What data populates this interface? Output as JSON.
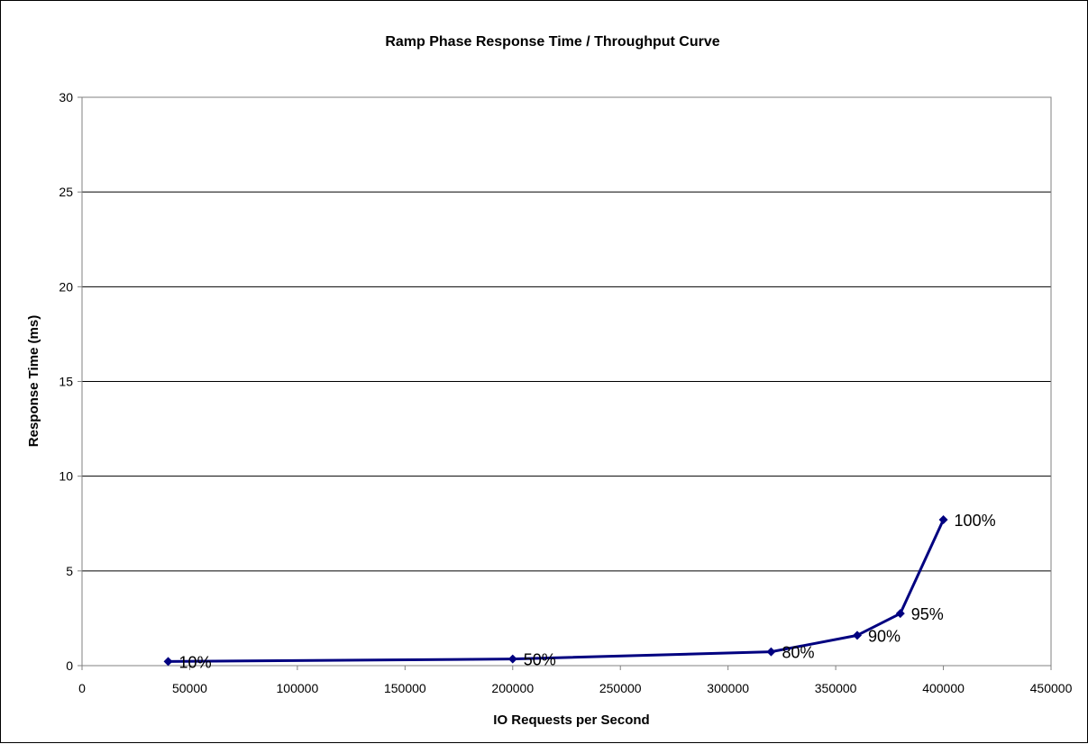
{
  "chart_data": {
    "type": "line",
    "title": "Ramp Phase Response Time / Throughput Curve",
    "xlabel": "IO Requests per Second",
    "ylabel": "Response Time (ms)",
    "xlim": [
      0,
      450000
    ],
    "ylim": [
      0,
      30
    ],
    "xticks": [
      0,
      50000,
      100000,
      150000,
      200000,
      250000,
      300000,
      350000,
      400000,
      450000
    ],
    "yticks": [
      0,
      5,
      10,
      15,
      20,
      25,
      30
    ],
    "grid": "horizontal",
    "legend": "none",
    "series": [
      {
        "color": "#000080",
        "points": [
          {
            "x": 40000,
            "y": 0.22,
            "label": "10%"
          },
          {
            "x": 200000,
            "y": 0.35,
            "label": "50%"
          },
          {
            "x": 320000,
            "y": 0.73,
            "label": "80%"
          },
          {
            "x": 360000,
            "y": 1.6,
            "label": "90%"
          },
          {
            "x": 380000,
            "y": 2.75,
            "label": "95%"
          },
          {
            "x": 400000,
            "y": 7.7,
            "label": "100%"
          }
        ]
      }
    ]
  }
}
